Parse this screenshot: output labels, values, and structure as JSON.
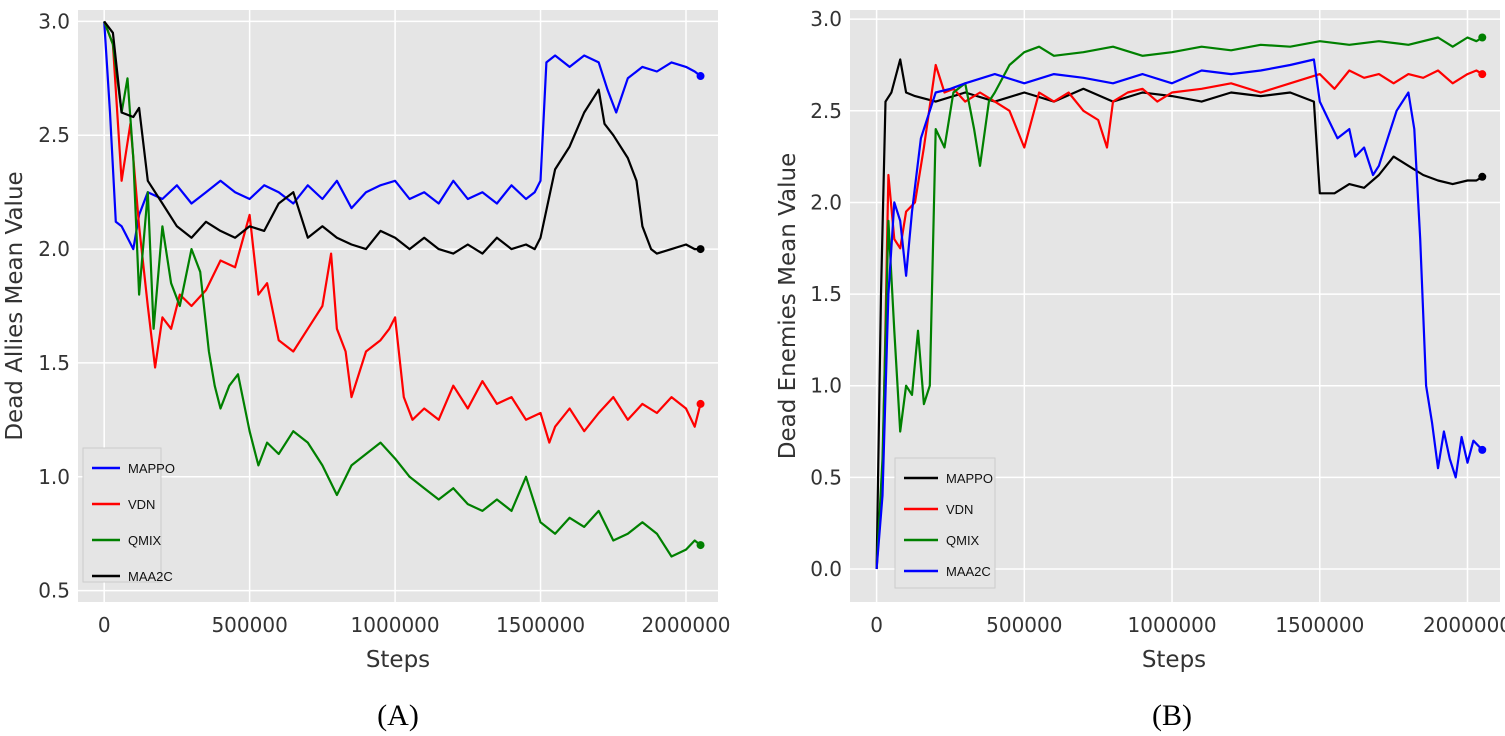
{
  "chart_data": [
    {
      "id": "A",
      "type": "line",
      "title": "",
      "caption": "(A)",
      "xlabel": "Steps",
      "ylabel": "Dead Allies Mean Value",
      "xlim": [
        -90000,
        2110000
      ],
      "ylim": [
        0.45,
        3.05
      ],
      "xticks": [
        0,
        500000,
        1000000,
        1500000,
        2000000
      ],
      "xtick_labels": [
        "0",
        "500000",
        "1000000",
        "1500000",
        "2000000"
      ],
      "yticks": [
        0.5,
        1.0,
        1.5,
        2.0,
        2.5,
        3.0
      ],
      "ytick_labels": [
        "0.5",
        "1.0",
        "1.5",
        "2.0",
        "2.5",
        "3.0"
      ],
      "grid": true,
      "legend_position": "lower-left",
      "series": [
        {
          "name": "MAPPO",
          "color": "#0000ff",
          "x": [
            0,
            20000,
            40000,
            60000,
            80000,
            100000,
            120000,
            150000,
            200000,
            250000,
            300000,
            350000,
            400000,
            450000,
            500000,
            550000,
            600000,
            650000,
            700000,
            750000,
            800000,
            850000,
            900000,
            950000,
            1000000,
            1050000,
            1100000,
            1150000,
            1200000,
            1250000,
            1300000,
            1350000,
            1400000,
            1450000,
            1480000,
            1500000,
            1520000,
            1550000,
            1600000,
            1650000,
            1700000,
            1730000,
            1760000,
            1800000,
            1850000,
            1900000,
            1950000,
            2000000,
            2030000,
            2050000
          ],
          "y": [
            3.0,
            2.6,
            2.12,
            2.1,
            2.05,
            2.0,
            2.15,
            2.25,
            2.22,
            2.28,
            2.2,
            2.25,
            2.3,
            2.25,
            2.22,
            2.28,
            2.25,
            2.2,
            2.28,
            2.22,
            2.3,
            2.18,
            2.25,
            2.28,
            2.3,
            2.22,
            2.25,
            2.2,
            2.3,
            2.22,
            2.25,
            2.2,
            2.28,
            2.22,
            2.25,
            2.3,
            2.82,
            2.85,
            2.8,
            2.85,
            2.82,
            2.7,
            2.6,
            2.75,
            2.8,
            2.78,
            2.82,
            2.8,
            2.78,
            2.76
          ]
        },
        {
          "name": "VDN",
          "color": "#ff0000",
          "x": [
            0,
            30000,
            60000,
            90000,
            120000,
            150000,
            175000,
            200000,
            230000,
            260000,
            300000,
            350000,
            400000,
            450000,
            500000,
            530000,
            560000,
            600000,
            650000,
            700000,
            750000,
            780000,
            800000,
            830000,
            850000,
            900000,
            950000,
            980000,
            1000000,
            1030000,
            1060000,
            1100000,
            1150000,
            1200000,
            1250000,
            1300000,
            1350000,
            1400000,
            1450000,
            1500000,
            1530000,
            1550000,
            1600000,
            1650000,
            1700000,
            1750000,
            1800000,
            1850000,
            1900000,
            1950000,
            2000000,
            2030000,
            2050000
          ],
          "y": [
            3.0,
            2.9,
            2.3,
            2.55,
            2.1,
            1.75,
            1.48,
            1.7,
            1.65,
            1.8,
            1.75,
            1.82,
            1.95,
            1.92,
            2.15,
            1.8,
            1.85,
            1.6,
            1.55,
            1.65,
            1.75,
            1.98,
            1.65,
            1.55,
            1.35,
            1.55,
            1.6,
            1.65,
            1.7,
            1.35,
            1.25,
            1.3,
            1.25,
            1.4,
            1.3,
            1.42,
            1.32,
            1.35,
            1.25,
            1.28,
            1.15,
            1.22,
            1.3,
            1.2,
            1.28,
            1.35,
            1.25,
            1.32,
            1.28,
            1.35,
            1.3,
            1.22,
            1.32
          ]
        },
        {
          "name": "QMIX",
          "color": "#008000",
          "x": [
            0,
            30000,
            60000,
            80000,
            100000,
            120000,
            150000,
            170000,
            200000,
            230000,
            260000,
            300000,
            330000,
            360000,
            380000,
            400000,
            430000,
            460000,
            500000,
            530000,
            560000,
            600000,
            650000,
            700000,
            750000,
            800000,
            850000,
            900000,
            950000,
            1000000,
            1050000,
            1100000,
            1150000,
            1200000,
            1250000,
            1300000,
            1350000,
            1400000,
            1450000,
            1500000,
            1550000,
            1600000,
            1650000,
            1700000,
            1750000,
            1800000,
            1850000,
            1900000,
            1950000,
            2000000,
            2030000,
            2050000
          ],
          "y": [
            3.0,
            2.9,
            2.6,
            2.75,
            2.4,
            1.8,
            2.25,
            1.65,
            2.1,
            1.85,
            1.75,
            2.0,
            1.9,
            1.55,
            1.4,
            1.3,
            1.4,
            1.45,
            1.2,
            1.05,
            1.15,
            1.1,
            1.2,
            1.15,
            1.05,
            0.92,
            1.05,
            1.1,
            1.15,
            1.08,
            1.0,
            0.95,
            0.9,
            0.95,
            0.88,
            0.85,
            0.9,
            0.85,
            1.0,
            0.8,
            0.75,
            0.82,
            0.78,
            0.85,
            0.72,
            0.75,
            0.8,
            0.75,
            0.65,
            0.68,
            0.72,
            0.7
          ]
        },
        {
          "name": "MAA2C",
          "color": "#000000",
          "x": [
            0,
            30000,
            60000,
            100000,
            120000,
            150000,
            200000,
            250000,
            300000,
            350000,
            400000,
            450000,
            500000,
            550000,
            600000,
            650000,
            700000,
            750000,
            800000,
            850000,
            900000,
            950000,
            1000000,
            1050000,
            1100000,
            1150000,
            1200000,
            1250000,
            1300000,
            1350000,
            1400000,
            1450000,
            1480000,
            1500000,
            1550000,
            1600000,
            1650000,
            1700000,
            1720000,
            1750000,
            1800000,
            1830000,
            1850000,
            1880000,
            1900000,
            1950000,
            2000000,
            2030000,
            2050000
          ],
          "y": [
            3.0,
            2.95,
            2.6,
            2.58,
            2.62,
            2.3,
            2.2,
            2.1,
            2.05,
            2.12,
            2.08,
            2.05,
            2.1,
            2.08,
            2.2,
            2.25,
            2.05,
            2.1,
            2.05,
            2.02,
            2.0,
            2.08,
            2.05,
            2.0,
            2.05,
            2.0,
            1.98,
            2.02,
            1.98,
            2.05,
            2.0,
            2.02,
            2.0,
            2.05,
            2.35,
            2.45,
            2.6,
            2.7,
            2.55,
            2.5,
            2.4,
            2.3,
            2.1,
            2.0,
            1.98,
            2.0,
            2.02,
            2.0,
            2.0
          ]
        }
      ]
    },
    {
      "id": "B",
      "type": "line",
      "title": "",
      "caption": "(B)",
      "xlabel": "Steps",
      "ylabel": "Dead Enemies Mean Value",
      "xlim": [
        -90000,
        2110000
      ],
      "ylim": [
        -0.18,
        3.05
      ],
      "xticks": [
        0,
        500000,
        1000000,
        1500000,
        2000000
      ],
      "xtick_labels": [
        "0",
        "500000",
        "1000000",
        "1500000",
        "2000000"
      ],
      "yticks": [
        0.0,
        0.5,
        1.0,
        1.5,
        2.0,
        2.5,
        3.0
      ],
      "ytick_labels": [
        "0.0",
        "0.5",
        "1.0",
        "1.5",
        "2.0",
        "2.5",
        "3.0"
      ],
      "grid": true,
      "legend_position": "lower-left",
      "series": [
        {
          "name": "MAPPO",
          "color": "#000000",
          "x": [
            0,
            15000,
            30000,
            50000,
            80000,
            100000,
            130000,
            200000,
            300000,
            400000,
            500000,
            600000,
            700000,
            800000,
            900000,
            1000000,
            1100000,
            1200000,
            1300000,
            1400000,
            1480000,
            1500000,
            1550000,
            1600000,
            1650000,
            1700000,
            1750000,
            1800000,
            1850000,
            1900000,
            1950000,
            2000000,
            2030000,
            2050000
          ],
          "y": [
            0.0,
            1.5,
            2.55,
            2.6,
            2.78,
            2.6,
            2.58,
            2.55,
            2.6,
            2.55,
            2.6,
            2.55,
            2.62,
            2.55,
            2.6,
            2.58,
            2.55,
            2.6,
            2.58,
            2.6,
            2.55,
            2.05,
            2.05,
            2.1,
            2.08,
            2.15,
            2.25,
            2.2,
            2.15,
            2.12,
            2.1,
            2.12,
            2.12,
            2.14
          ]
        },
        {
          "name": "VDN",
          "color": "#ff0000",
          "x": [
            0,
            20000,
            40000,
            60000,
            80000,
            100000,
            130000,
            160000,
            200000,
            230000,
            260000,
            300000,
            350000,
            400000,
            450000,
            500000,
            550000,
            600000,
            650000,
            700000,
            750000,
            780000,
            800000,
            850000,
            900000,
            950000,
            1000000,
            1100000,
            1200000,
            1300000,
            1400000,
            1500000,
            1550000,
            1600000,
            1650000,
            1700000,
            1750000,
            1800000,
            1850000,
            1900000,
            1950000,
            2000000,
            2030000,
            2050000
          ],
          "y": [
            0.0,
            0.5,
            2.15,
            1.8,
            1.75,
            1.95,
            2.0,
            2.3,
            2.75,
            2.6,
            2.62,
            2.55,
            2.6,
            2.55,
            2.5,
            2.3,
            2.6,
            2.55,
            2.6,
            2.5,
            2.45,
            2.3,
            2.55,
            2.6,
            2.62,
            2.55,
            2.6,
            2.62,
            2.65,
            2.6,
            2.65,
            2.7,
            2.62,
            2.72,
            2.68,
            2.7,
            2.65,
            2.7,
            2.68,
            2.72,
            2.65,
            2.7,
            2.72,
            2.7
          ]
        },
        {
          "name": "QMIX",
          "color": "#008000",
          "x": [
            0,
            20000,
            40000,
            60000,
            80000,
            100000,
            120000,
            140000,
            160000,
            180000,
            200000,
            230000,
            260000,
            300000,
            330000,
            350000,
            380000,
            400000,
            450000,
            500000,
            550000,
            600000,
            700000,
            800000,
            900000,
            1000000,
            1100000,
            1200000,
            1300000,
            1400000,
            1500000,
            1600000,
            1700000,
            1800000,
            1900000,
            1950000,
            2000000,
            2030000,
            2050000
          ],
          "y": [
            0.0,
            0.6,
            1.9,
            1.3,
            0.75,
            1.0,
            0.95,
            1.3,
            0.9,
            1.0,
            2.4,
            2.3,
            2.6,
            2.65,
            2.4,
            2.2,
            2.55,
            2.6,
            2.75,
            2.82,
            2.85,
            2.8,
            2.82,
            2.85,
            2.8,
            2.82,
            2.85,
            2.83,
            2.86,
            2.85,
            2.88,
            2.86,
            2.88,
            2.86,
            2.9,
            2.85,
            2.9,
            2.88,
            2.9
          ]
        },
        {
          "name": "MAA2C",
          "color": "#0000ff",
          "x": [
            0,
            20000,
            40000,
            60000,
            80000,
            100000,
            120000,
            150000,
            180000,
            200000,
            250000,
            300000,
            400000,
            500000,
            600000,
            700000,
            800000,
            900000,
            1000000,
            1100000,
            1200000,
            1300000,
            1400000,
            1480000,
            1500000,
            1530000,
            1560000,
            1600000,
            1620000,
            1650000,
            1680000,
            1700000,
            1730000,
            1760000,
            1800000,
            1820000,
            1840000,
            1860000,
            1880000,
            1900000,
            1920000,
            1940000,
            1960000,
            1980000,
            2000000,
            2020000,
            2050000
          ],
          "y": [
            0.0,
            0.4,
            1.5,
            2.0,
            1.9,
            1.6,
            1.95,
            2.35,
            2.5,
            2.6,
            2.62,
            2.65,
            2.7,
            2.65,
            2.7,
            2.68,
            2.65,
            2.7,
            2.65,
            2.72,
            2.7,
            2.72,
            2.75,
            2.78,
            2.55,
            2.45,
            2.35,
            2.4,
            2.25,
            2.3,
            2.15,
            2.2,
            2.35,
            2.5,
            2.6,
            2.4,
            1.8,
            1.0,
            0.8,
            0.55,
            0.75,
            0.6,
            0.5,
            0.72,
            0.58,
            0.7,
            0.65
          ]
        }
      ]
    }
  ]
}
